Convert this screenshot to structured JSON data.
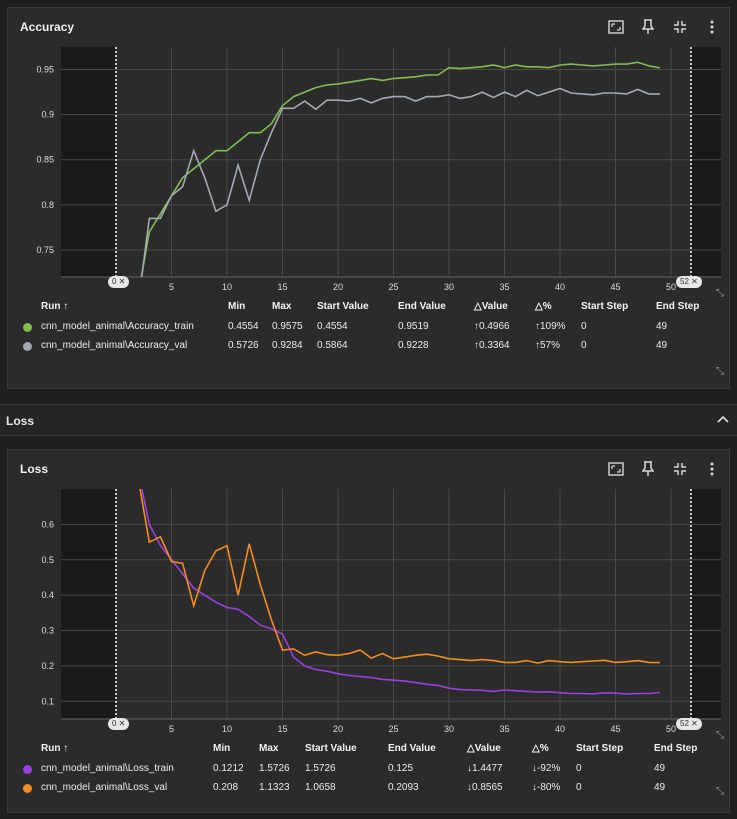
{
  "accuracy_card": {
    "title": "Accuracy",
    "icons": [
      "fit-domain-icon",
      "pin-icon",
      "collapse-icon",
      "more-vert-icon"
    ],
    "table_headers": {
      "run": "Run ↑",
      "min": "Min",
      "max": "Max",
      "start_value": "Start Value",
      "end_value": "End Value",
      "delta_value": "△Value",
      "delta_pct": "△%",
      "start_step": "Start Step",
      "end_step": "End Step"
    },
    "rows": [
      {
        "color": "#7ec04a",
        "run": "cnn_model_animal\\Accuracy_train",
        "min": "0.4554",
        "max": "0.9575",
        "start_value": "0.4554",
        "end_value": "0.9519",
        "delta_value": "↑0.4966",
        "delta_pct": "↑109%",
        "start_step": "0",
        "end_step": "49"
      },
      {
        "color": "#a3a9b2",
        "run": "cnn_model_animal\\Accuracy_val",
        "min": "0.5726",
        "max": "0.9284",
        "start_value": "0.5864",
        "end_value": "0.9228",
        "delta_value": "↑0.3364",
        "delta_pct": "↑57%",
        "start_step": "0",
        "end_step": "49"
      }
    ],
    "range_pill_left": "0",
    "range_pill_right": "52"
  },
  "section": {
    "title": "Loss"
  },
  "loss_card": {
    "title": "Loss",
    "icons": [
      "fit-domain-icon",
      "pin-icon",
      "collapse-icon",
      "more-vert-icon"
    ],
    "table_headers": {
      "run": "Run ↑",
      "min": "Min",
      "max": "Max",
      "start_value": "Start Value",
      "end_value": "End Value",
      "delta_value": "△Value",
      "delta_pct": "△%",
      "start_step": "Start Step",
      "end_step": "End Step"
    },
    "rows": [
      {
        "color": "#9b3fe0",
        "run": "cnn_model_animal\\Loss_train",
        "min": "0.1212",
        "max": "1.5726",
        "start_value": "1.5726",
        "end_value": "0.125",
        "delta_value": "↓1.4477",
        "delta_pct": "↓-92%",
        "start_step": "0",
        "end_step": "49"
      },
      {
        "color": "#f28c1c",
        "run": "cnn_model_animal\\Loss_val",
        "min": "0.208",
        "max": "1.1323",
        "start_value": "1.0658",
        "end_value": "0.2093",
        "delta_value": "↓0.8565",
        "delta_pct": "↓-80%",
        "start_step": "0",
        "end_step": "49"
      }
    ],
    "range_pill_left": "0",
    "range_pill_right": "52"
  },
  "chart_data": [
    {
      "type": "line",
      "title": "Accuracy",
      "xlim": [
        2,
        52
      ],
      "ylim": [
        0.72,
        0.975
      ],
      "x_ticks": [
        "5",
        "10",
        "15",
        "20",
        "25",
        "30",
        "35",
        "40",
        "45",
        "50"
      ],
      "y_ticks": [
        "0.75",
        "0.8",
        "0.85",
        "0.9",
        "0.95"
      ],
      "shaded_before": 2,
      "shaded_after": 52,
      "grid": true,
      "series": [
        {
          "name": "cnn_model_animal\\Accuracy_train",
          "color": "#7ec04a",
          "x": [
            2,
            3,
            4,
            5,
            6,
            7,
            8,
            9,
            10,
            11,
            12,
            13,
            14,
            15,
            16,
            17,
            18,
            19,
            20,
            21,
            22,
            23,
            24,
            25,
            26,
            27,
            28,
            29,
            30,
            31,
            32,
            33,
            34,
            35,
            36,
            37,
            38,
            39,
            40,
            41,
            42,
            43,
            44,
            45,
            46,
            47,
            48,
            49
          ],
          "y": [
            0.7,
            0.77,
            0.79,
            0.81,
            0.83,
            0.84,
            0.85,
            0.86,
            0.86,
            0.87,
            0.88,
            0.88,
            0.89,
            0.91,
            0.92,
            0.925,
            0.93,
            0.933,
            0.934,
            0.936,
            0.938,
            0.94,
            0.938,
            0.94,
            0.941,
            0.942,
            0.944,
            0.944,
            0.952,
            0.951,
            0.952,
            0.953,
            0.955,
            0.952,
            0.955,
            0.953,
            0.953,
            0.952,
            0.955,
            0.956,
            0.955,
            0.954,
            0.955,
            0.956,
            0.956,
            0.958,
            0.954,
            0.9519
          ]
        },
        {
          "name": "cnn_model_animal\\Accuracy_val",
          "color": "#a3a9b2",
          "x": [
            2,
            3,
            4,
            5,
            6,
            7,
            8,
            9,
            10,
            11,
            12,
            13,
            14,
            15,
            16,
            17,
            18,
            19,
            20,
            21,
            22,
            23,
            24,
            25,
            26,
            27,
            28,
            29,
            30,
            31,
            32,
            33,
            34,
            35,
            36,
            37,
            38,
            39,
            40,
            41,
            42,
            43,
            44,
            45,
            46,
            47,
            48,
            49
          ],
          "y": [
            0.69,
            0.785,
            0.785,
            0.81,
            0.82,
            0.86,
            0.83,
            0.793,
            0.8,
            0.844,
            0.805,
            0.85,
            0.88,
            0.907,
            0.907,
            0.915,
            0.906,
            0.916,
            0.916,
            0.915,
            0.918,
            0.913,
            0.918,
            0.92,
            0.92,
            0.915,
            0.92,
            0.92,
            0.922,
            0.918,
            0.92,
            0.925,
            0.919,
            0.925,
            0.92,
            0.927,
            0.921,
            0.925,
            0.929,
            0.924,
            0.923,
            0.922,
            0.924,
            0.924,
            0.923,
            0.928,
            0.923,
            0.9228
          ]
        }
      ]
    },
    {
      "type": "line",
      "title": "Loss",
      "xlim": [
        2,
        52
      ],
      "ylim": [
        0.05,
        0.7
      ],
      "x_ticks": [
        "5",
        "10",
        "15",
        "20",
        "25",
        "30",
        "35",
        "40",
        "45",
        "50"
      ],
      "y_ticks": [
        "0.1",
        "0.2",
        "0.3",
        "0.4",
        "0.5",
        "0.6"
      ],
      "shaded_before": 2,
      "shaded_after": 52,
      "grid": true,
      "series": [
        {
          "name": "cnn_model_animal\\Loss_train",
          "color": "#9b3fe0",
          "x": [
            2,
            3,
            4,
            5,
            6,
            7,
            8,
            9,
            10,
            11,
            12,
            13,
            14,
            15,
            16,
            17,
            18,
            19,
            20,
            21,
            22,
            23,
            24,
            25,
            26,
            27,
            28,
            29,
            30,
            31,
            32,
            33,
            34,
            35,
            36,
            37,
            38,
            39,
            40,
            41,
            42,
            43,
            44,
            45,
            46,
            47,
            48,
            49
          ],
          "y": [
            0.75,
            0.6,
            0.54,
            0.5,
            0.46,
            0.42,
            0.4,
            0.38,
            0.365,
            0.36,
            0.34,
            0.315,
            0.305,
            0.29,
            0.225,
            0.2,
            0.19,
            0.185,
            0.178,
            0.173,
            0.17,
            0.167,
            0.162,
            0.16,
            0.157,
            0.153,
            0.148,
            0.145,
            0.137,
            0.133,
            0.132,
            0.131,
            0.128,
            0.132,
            0.13,
            0.128,
            0.126,
            0.127,
            0.124,
            0.122,
            0.122,
            0.121,
            0.124,
            0.123,
            0.121,
            0.122,
            0.122,
            0.125
          ]
        },
        {
          "name": "cnn_model_animal\\Loss_val",
          "color": "#f28c1c",
          "x": [
            2,
            3,
            4,
            5,
            6,
            7,
            8,
            9,
            10,
            11,
            12,
            13,
            14,
            15,
            16,
            17,
            18,
            19,
            20,
            21,
            22,
            23,
            24,
            25,
            26,
            27,
            28,
            29,
            30,
            31,
            32,
            33,
            34,
            35,
            36,
            37,
            38,
            39,
            40,
            41,
            42,
            43,
            44,
            45,
            46,
            47,
            48,
            49
          ],
          "y": [
            0.73,
            0.55,
            0.565,
            0.495,
            0.49,
            0.37,
            0.47,
            0.525,
            0.54,
            0.4,
            0.545,
            0.43,
            0.33,
            0.245,
            0.248,
            0.23,
            0.24,
            0.232,
            0.23,
            0.235,
            0.245,
            0.222,
            0.235,
            0.22,
            0.225,
            0.23,
            0.233,
            0.228,
            0.22,
            0.218,
            0.215,
            0.218,
            0.215,
            0.21,
            0.21,
            0.215,
            0.208,
            0.215,
            0.212,
            0.21,
            0.212,
            0.214,
            0.216,
            0.21,
            0.212,
            0.215,
            0.21,
            0.2093
          ]
        }
      ]
    }
  ]
}
